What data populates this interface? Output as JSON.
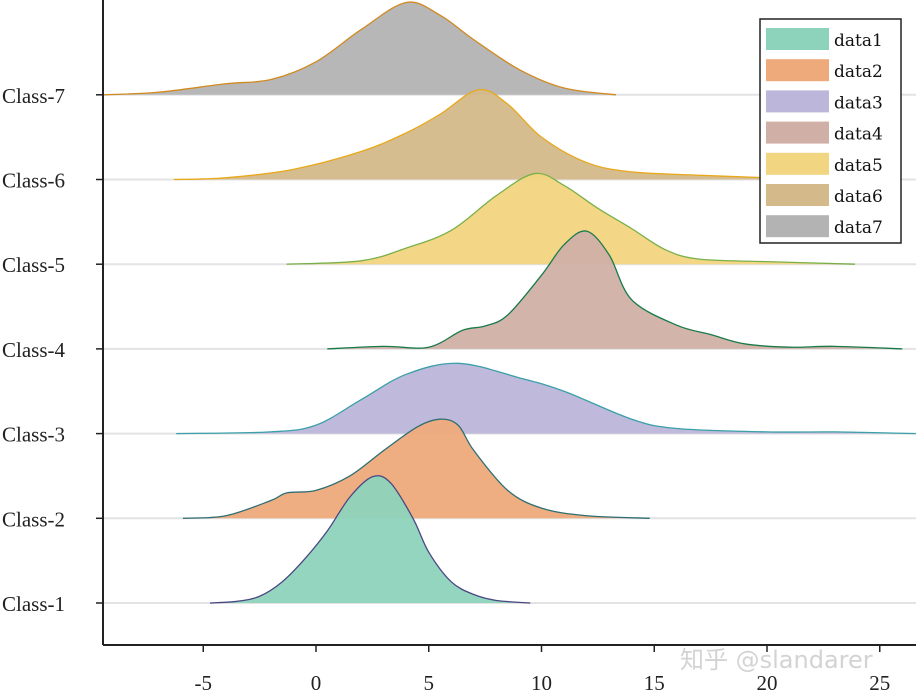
{
  "chart_data": {
    "type": "ridgeline",
    "title": "",
    "xlabel": "",
    "ylabel": "",
    "xlim": [
      -9.45,
      26.6
    ],
    "xticks": [
      -5,
      0,
      5,
      10,
      15,
      20,
      25
    ],
    "categories": [
      "Class-1",
      "Class-2",
      "Class-3",
      "Class-4",
      "Class-5",
      "Class-6",
      "Class-7"
    ],
    "grid": "horizontal baselines",
    "legend_position": "top-right",
    "series": [
      {
        "name": "data1",
        "category": "Class-1",
        "fill": "#8dd3bb",
        "stroke": "#4b4783",
        "x": [
          -4.7,
          -3.5,
          -2.5,
          -1.5,
          -0.5,
          0.5,
          1.5,
          2.5,
          3.3,
          4.3,
          5,
          6,
          7,
          8,
          9.5
        ],
        "y": [
          0,
          0.02,
          0.08,
          0.25,
          0.52,
          0.85,
          1.25,
          1.49,
          1.42,
          1.0,
          0.6,
          0.25,
          0.1,
          0.03,
          0
        ]
      },
      {
        "name": "data2",
        "category": "Class-2",
        "fill": "#eeaa7b",
        "stroke": "#2f6e73",
        "x": [
          -5.9,
          -4,
          -2,
          -1.3,
          0,
          1.5,
          3,
          4.5,
          5.5,
          6.3,
          7,
          8.5,
          10,
          12,
          14.8
        ],
        "y": [
          0,
          0.03,
          0.21,
          0.3,
          0.33,
          0.5,
          0.8,
          1.08,
          1.17,
          1.1,
          0.8,
          0.33,
          0.12,
          0.03,
          0
        ]
      },
      {
        "name": "data3",
        "category": "Class-3",
        "fill": "#bcb6da",
        "stroke": "#3a9fa8",
        "x": [
          -6.2,
          -2,
          0,
          2,
          4,
          6.3,
          9,
          11,
          14,
          16,
          20,
          23,
          26.6
        ],
        "y": [
          0,
          0.02,
          0.1,
          0.4,
          0.7,
          0.83,
          0.66,
          0.5,
          0.17,
          0.06,
          0.02,
          0.02,
          0
        ]
      },
      {
        "name": "data4",
        "category": "Class-4",
        "fill": "#d0b0a6",
        "stroke": "#1a7a4a",
        "x": [
          0.5,
          3,
          5,
          6.5,
          7.5,
          8.5,
          10,
          11,
          12,
          13,
          14,
          16,
          17.5,
          19,
          21,
          23,
          26
        ],
        "y": [
          0,
          0.03,
          0.02,
          0.22,
          0.27,
          0.4,
          0.87,
          1.23,
          1.39,
          1.11,
          0.58,
          0.28,
          0.17,
          0.06,
          0.02,
          0.03,
          0
        ]
      },
      {
        "name": "data5",
        "category": "Class-5",
        "fill": "#f2d580",
        "stroke": "#7ab04a",
        "x": [
          -1.3,
          2,
          4,
          6,
          8,
          9.7,
          11,
          12.5,
          14,
          15.5,
          17,
          20,
          23.9
        ],
        "y": [
          0,
          0.04,
          0.19,
          0.4,
          0.81,
          1.07,
          0.93,
          0.66,
          0.42,
          0.17,
          0.06,
          0.03,
          0
        ]
      },
      {
        "name": "data6",
        "category": "Class-6",
        "fill": "#d4b98a",
        "stroke": "#e8a81a",
        "x": [
          -6.3,
          -4,
          -1,
          2,
          4,
          5.5,
          7.2,
          8.5,
          10,
          12,
          14,
          17,
          20,
          21
        ],
        "y": [
          0,
          0.02,
          0.12,
          0.33,
          0.55,
          0.77,
          1.06,
          0.89,
          0.5,
          0.2,
          0.09,
          0.05,
          0.02,
          0
        ]
      },
      {
        "name": "data7",
        "category": "Class-7",
        "fill": "#b3b3b3",
        "stroke": "#d08a20",
        "x": [
          -9.45,
          -7,
          -4,
          -2,
          0,
          2,
          4,
          5.5,
          7,
          9,
          11,
          13.3
        ],
        "y": [
          0,
          0.03,
          0.13,
          0.18,
          0.39,
          0.77,
          1.09,
          0.94,
          0.65,
          0.3,
          0.08,
          0
        ]
      }
    ]
  },
  "watermark": "知乎 @slandarer"
}
